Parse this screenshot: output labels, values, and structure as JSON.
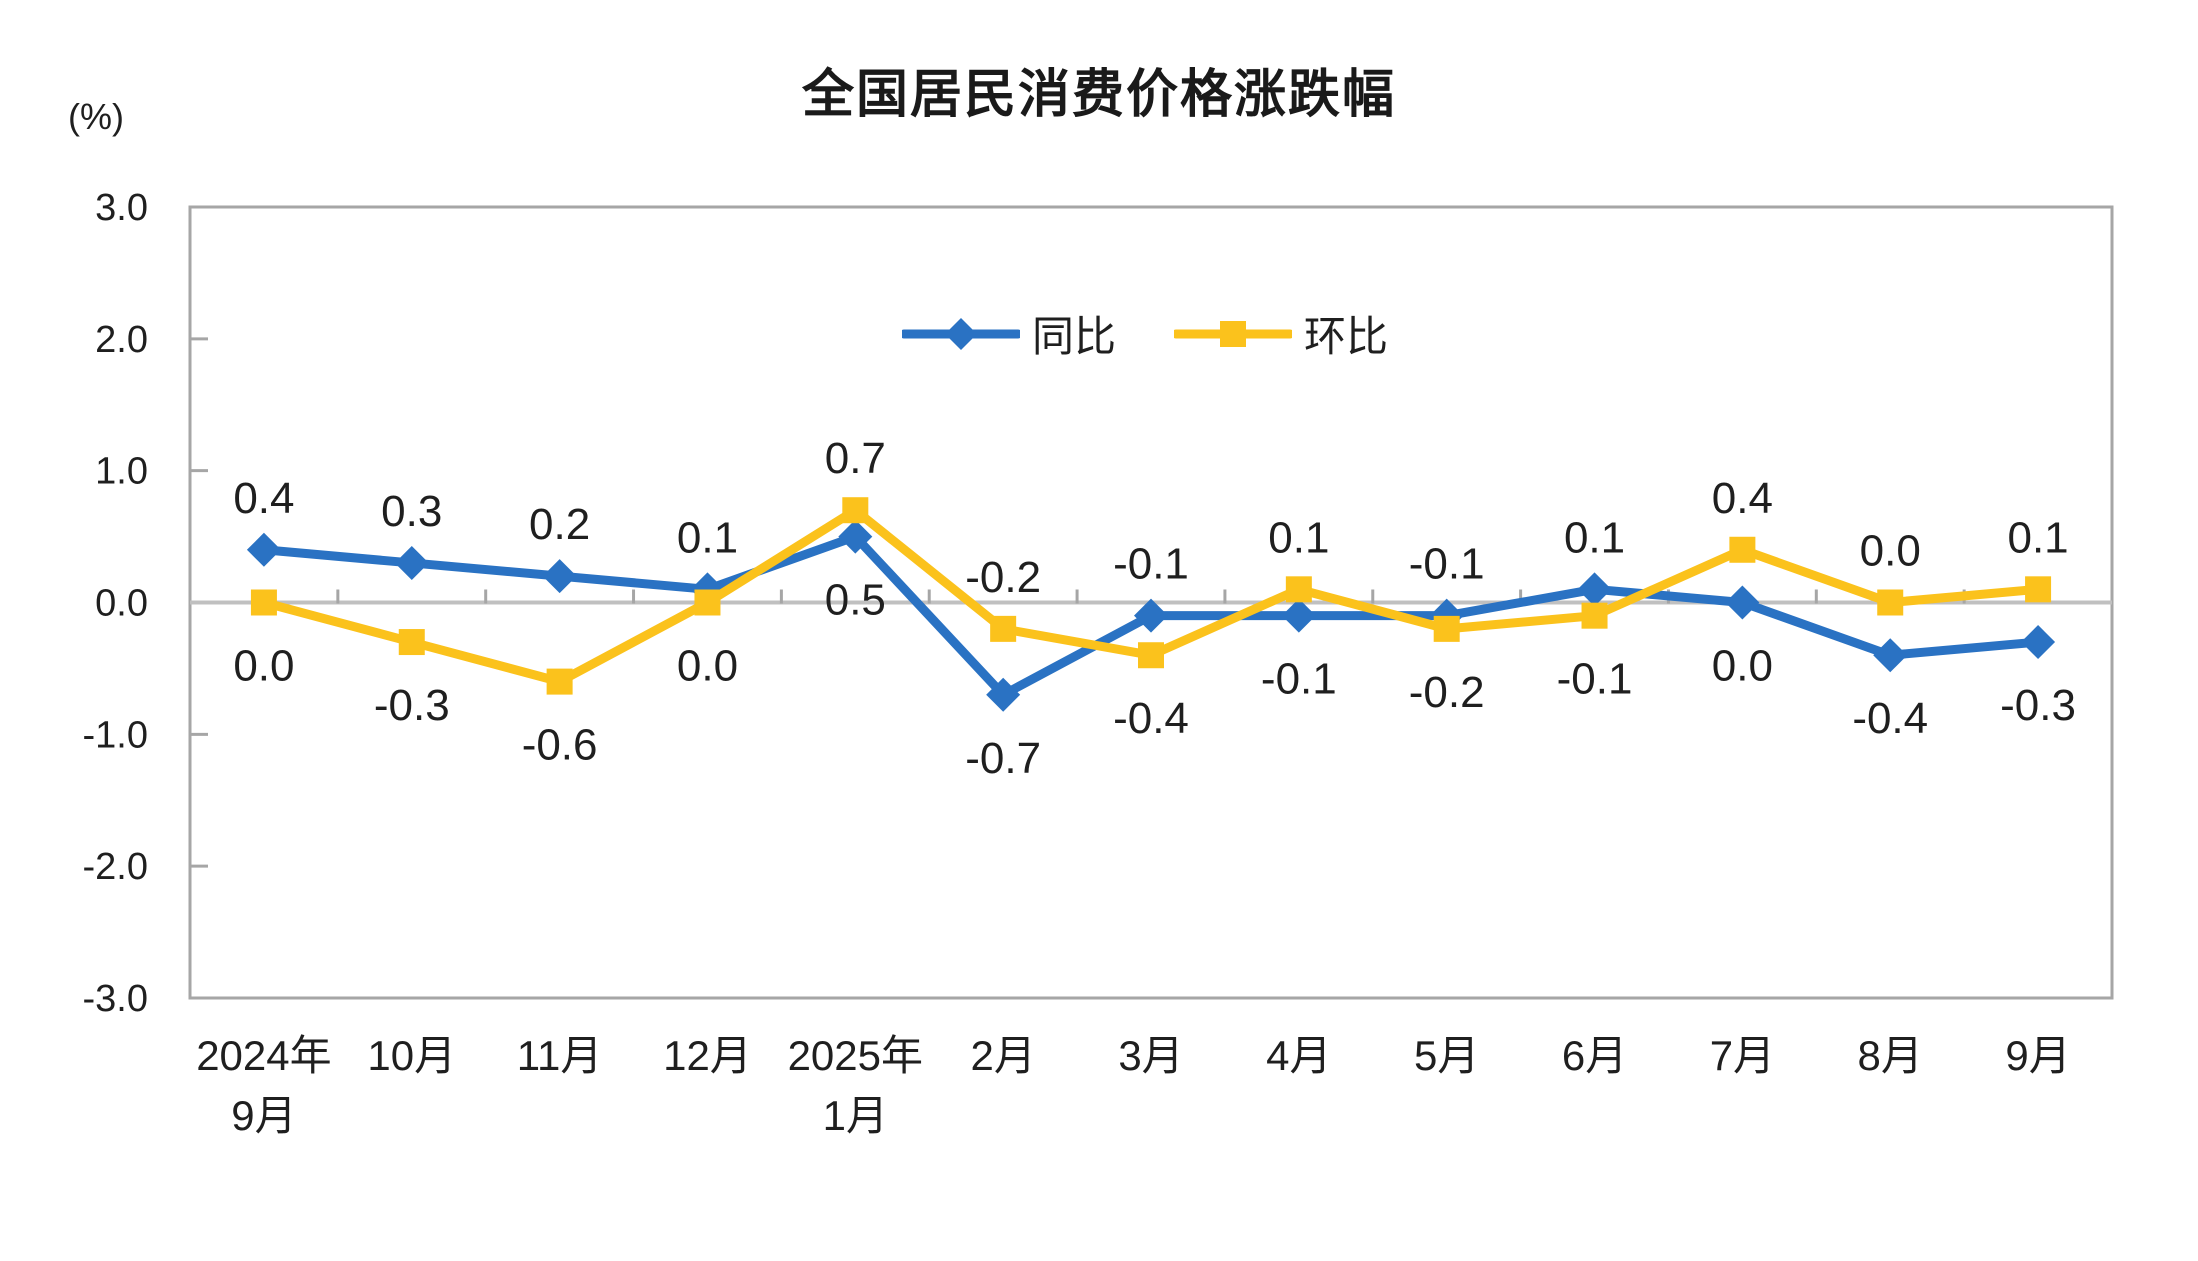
{
  "chart_data": {
    "type": "line",
    "title": "全国居民消费价格涨跌幅",
    "unit": "(%)",
    "categories": [
      [
        "2024年",
        "9月"
      ],
      [
        "10月"
      ],
      [
        "11月"
      ],
      [
        "12月"
      ],
      [
        "2025年",
        "1月"
      ],
      [
        "2月"
      ],
      [
        "3月"
      ],
      [
        "4月"
      ],
      [
        "5月"
      ],
      [
        "6月"
      ],
      [
        "7月"
      ],
      [
        "8月"
      ],
      [
        "9月"
      ]
    ],
    "y_axis": {
      "min": -3.0,
      "max": 3.0,
      "step": 1.0,
      "tick_labels": [
        "3.0",
        "2.0",
        "1.0",
        "0.0",
        "-1.0",
        "-2.0",
        "-3.0"
      ]
    },
    "grid": false,
    "legend_position": "top-center",
    "series": [
      {
        "name": "同比",
        "color": "#2A72C3",
        "marker": "diamond",
        "values": [
          0.4,
          0.3,
          0.2,
          0.1,
          0.5,
          -0.7,
          -0.1,
          -0.1,
          -0.1,
          0.1,
          0.0,
          -0.4,
          -0.3
        ],
        "label_positions": [
          "above",
          "above",
          "above",
          "above",
          "below",
          "below",
          "above",
          "below",
          "above",
          "above",
          "below",
          "below",
          "below"
        ]
      },
      {
        "name": "环比",
        "color": "#FBC21C",
        "marker": "square",
        "values": [
          0.0,
          -0.3,
          -0.6,
          0.0,
          0.7,
          -0.2,
          -0.4,
          0.1,
          -0.2,
          -0.1,
          0.4,
          0.0,
          0.1
        ],
        "label_positions": [
          "below",
          "below",
          "below",
          "below",
          "above",
          "above",
          "below",
          "above",
          "below",
          "below",
          "above",
          "above",
          "above"
        ]
      }
    ],
    "colors": {
      "frame": "#A6A6A6",
      "zero_line": "#C0C0C0",
      "tick": "#A6A6A6",
      "text": "#1f1f1f"
    }
  }
}
